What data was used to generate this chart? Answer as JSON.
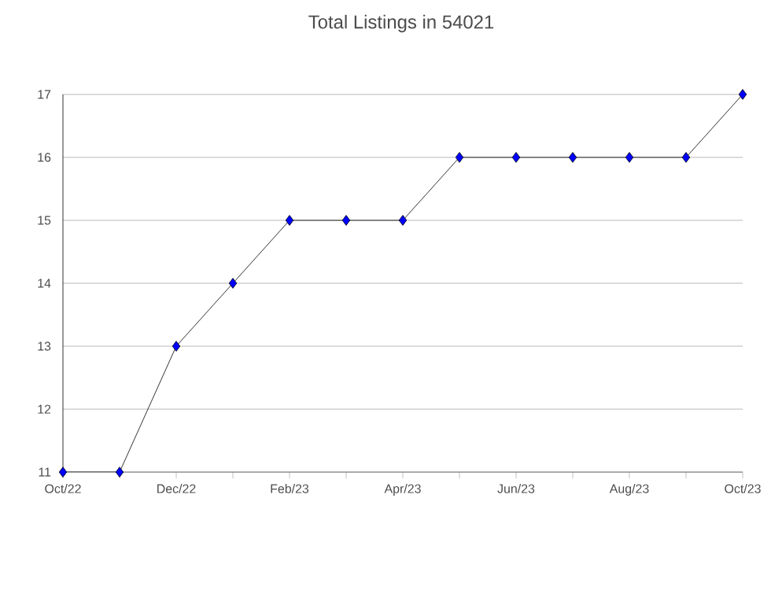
{
  "chart_data": {
    "type": "line",
    "title": "Total Listings in 54021",
    "categories": [
      "Oct/22",
      null,
      "Dec/22",
      null,
      "Feb/23",
      null,
      "Apr/23",
      null,
      "Jun/23",
      null,
      "Aug/23",
      null,
      "Oct/23"
    ],
    "series": [
      {
        "color": "#0000ff",
        "values": [
          11,
          11,
          13,
          14,
          15,
          15,
          15,
          16,
          16,
          16,
          16,
          16,
          17
        ]
      }
    ],
    "ylim": [
      11,
      17
    ],
    "yticks": [
      11,
      12,
      13,
      14,
      15,
      16,
      17
    ],
    "grid": "y",
    "marker": "diamond",
    "line_style": "solid"
  }
}
